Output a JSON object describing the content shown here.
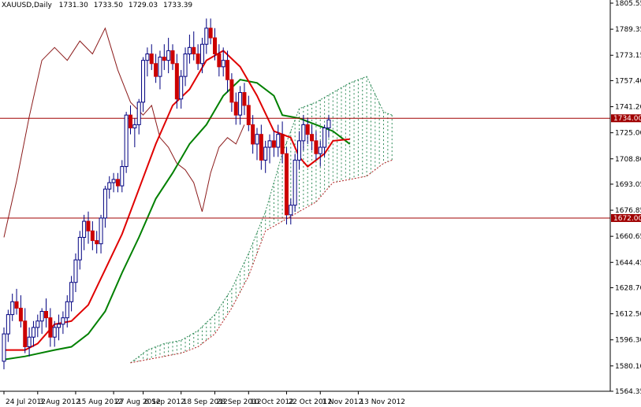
{
  "header": {
    "symbol": "XAUUSD,Daily",
    "open": "1731.30",
    "high": "1733.50",
    "low": "1729.03",
    "close": "1733.39"
  },
  "colors": {
    "background": "#ffffff",
    "bull_candle": "#ffffff",
    "bear_candle": "#cc0000",
    "candle_outline": "#000080",
    "tenkan": "#e00000",
    "kijun": "#008000",
    "chikou": "#8b1a1a",
    "cloud_bull": "#2e8b57",
    "cloud_bear": "#b22222",
    "level_line": "#a00000",
    "axis": "#000000"
  },
  "chart_data": {
    "type": "candlestick-ichimoku",
    "y_axis": {
      "min": 1564.35,
      "max": 1805.55,
      "ticks": [
        "1805.55",
        "1789.35",
        "1773.15",
        "1757.40",
        "1741.20",
        "1725.00",
        "1708.80",
        "1693.05",
        "1676.85",
        "1660.65",
        "1644.45",
        "1628.70",
        "1612.50",
        "1596.30",
        "1580.10",
        "1564.35"
      ]
    },
    "x_axis": {
      "labels": [
        "24 Jul 2012",
        "3 Aug 2012",
        "15 Aug 2012",
        "27 Aug 2012",
        "6 Sep 2012",
        "18 Sep 2012",
        "28 Sep 2012",
        "10 Oct 2012",
        "22 Oct 2012",
        "1 Nov 2012",
        "13 Nov 2012"
      ],
      "label_bar_index": [
        0,
        8,
        17,
        26,
        33,
        42,
        50,
        58,
        67,
        75,
        84
      ]
    },
    "levels": [
      {
        "value": 1734.0,
        "label": "1734.00"
      },
      {
        "value": 1672.0,
        "label": "1672.00"
      }
    ],
    "candles": [
      [
        1583,
        1604,
        1578,
        1600
      ],
      [
        1600,
        1615,
        1595,
        1612
      ],
      [
        1612,
        1625,
        1608,
        1620
      ],
      [
        1620,
        1628,
        1612,
        1616
      ],
      [
        1616,
        1624,
        1604,
        1608
      ],
      [
        1608,
        1616,
        1588,
        1592
      ],
      [
        1592,
        1604,
        1586,
        1598
      ],
      [
        1598,
        1608,
        1592,
        1604
      ],
      [
        1604,
        1612,
        1598,
        1608
      ],
      [
        1608,
        1616,
        1600,
        1614
      ],
      [
        1614,
        1622,
        1604,
        1610
      ],
      [
        1610,
        1616,
        1592,
        1598
      ],
      [
        1598,
        1608,
        1592,
        1604
      ],
      [
        1604,
        1612,
        1596,
        1606
      ],
      [
        1606,
        1614,
        1600,
        1610
      ],
      [
        1610,
        1624,
        1604,
        1620
      ],
      [
        1620,
        1636,
        1614,
        1632
      ],
      [
        1632,
        1650,
        1626,
        1646
      ],
      [
        1646,
        1664,
        1640,
        1660
      ],
      [
        1660,
        1674,
        1652,
        1670
      ],
      [
        1670,
        1676,
        1656,
        1664
      ],
      [
        1664,
        1670,
        1652,
        1658
      ],
      [
        1658,
        1664,
        1650,
        1656
      ],
      [
        1656,
        1674,
        1650,
        1672
      ],
      [
        1672,
        1692,
        1666,
        1690
      ],
      [
        1690,
        1698,
        1684,
        1694
      ],
      [
        1694,
        1700,
        1688,
        1696
      ],
      [
        1696,
        1700,
        1688,
        1692
      ],
      [
        1692,
        1708,
        1688,
        1704
      ],
      [
        1704,
        1738,
        1700,
        1736
      ],
      [
        1736,
        1742,
        1724,
        1728
      ],
      [
        1728,
        1734,
        1716,
        1730
      ],
      [
        1730,
        1746,
        1724,
        1744
      ],
      [
        1744,
        1772,
        1738,
        1770
      ],
      [
        1770,
        1778,
        1760,
        1774
      ],
      [
        1774,
        1780,
        1764,
        1768
      ],
      [
        1768,
        1774,
        1756,
        1760
      ],
      [
        1760,
        1776,
        1752,
        1772
      ],
      [
        1772,
        1780,
        1764,
        1770
      ],
      [
        1770,
        1784,
        1762,
        1776
      ],
      [
        1776,
        1780,
        1764,
        1768
      ],
      [
        1768,
        1774,
        1740,
        1746
      ],
      [
        1746,
        1764,
        1740,
        1760
      ],
      [
        1760,
        1778,
        1754,
        1774
      ],
      [
        1774,
        1786,
        1768,
        1778
      ],
      [
        1778,
        1788,
        1770,
        1774
      ],
      [
        1774,
        1780,
        1764,
        1768
      ],
      [
        1768,
        1784,
        1762,
        1780
      ],
      [
        1780,
        1796,
        1774,
        1790
      ],
      [
        1790,
        1796,
        1780,
        1784
      ],
      [
        1784,
        1790,
        1770,
        1774
      ],
      [
        1774,
        1780,
        1760,
        1766
      ],
      [
        1766,
        1778,
        1760,
        1770
      ],
      [
        1770,
        1776,
        1750,
        1758
      ],
      [
        1758,
        1762,
        1738,
        1744
      ],
      [
        1744,
        1750,
        1730,
        1736
      ],
      [
        1736,
        1754,
        1730,
        1750
      ],
      [
        1750,
        1756,
        1736,
        1742
      ],
      [
        1742,
        1748,
        1726,
        1730
      ],
      [
        1730,
        1736,
        1712,
        1718
      ],
      [
        1718,
        1728,
        1708,
        1724
      ],
      [
        1724,
        1730,
        1702,
        1708
      ],
      [
        1708,
        1720,
        1700,
        1716
      ],
      [
        1716,
        1724,
        1706,
        1720
      ],
      [
        1720,
        1726,
        1710,
        1716
      ],
      [
        1716,
        1730,
        1710,
        1724
      ],
      [
        1724,
        1732,
        1706,
        1712
      ],
      [
        1712,
        1716,
        1668,
        1674
      ],
      [
        1674,
        1684,
        1668,
        1680
      ],
      [
        1680,
        1712,
        1676,
        1708
      ],
      [
        1708,
        1726,
        1702,
        1720
      ],
      [
        1720,
        1736,
        1714,
        1730
      ],
      [
        1730,
        1734,
        1718,
        1724
      ],
      [
        1724,
        1730,
        1714,
        1720
      ],
      [
        1720,
        1726,
        1708,
        1712
      ],
      [
        1712,
        1720,
        1704,
        1716
      ],
      [
        1716,
        1730,
        1710,
        1728
      ],
      [
        1728,
        1736,
        1722,
        1733
      ]
    ],
    "bar_positions": [
      5,
      10,
      16,
      21,
      26,
      31,
      36,
      41,
      46,
      51,
      57,
      62,
      67,
      72,
      77,
      82,
      88,
      93,
      98,
      103,
      108,
      114,
      119,
      124,
      130,
      135,
      140,
      145,
      150,
      156,
      161,
      166,
      172,
      177,
      182,
      187,
      193,
      198,
      203,
      208,
      214,
      219,
      224,
      229,
      234,
      240,
      245,
      250,
      255,
      261,
      266,
      271,
      276,
      282,
      287,
      292,
      297,
      302,
      308,
      313,
      318,
      323,
      328,
      334,
      339,
      344,
      349,
      354,
      360,
      365,
      370,
      375,
      380,
      386,
      391,
      396,
      401,
      406
    ],
    "tenkan": [
      [
        0,
        1590
      ],
      [
        5,
        1590
      ],
      [
        8,
        1594
      ],
      [
        12,
        1606
      ],
      [
        16,
        1608
      ],
      [
        20,
        1618
      ],
      [
        24,
        1640
      ],
      [
        28,
        1662
      ],
      [
        32,
        1690
      ],
      [
        36,
        1718
      ],
      [
        40,
        1742
      ],
      [
        44,
        1752
      ],
      [
        48,
        1770
      ],
      [
        52,
        1776
      ],
      [
        56,
        1766
      ],
      [
        60,
        1748
      ],
      [
        64,
        1726
      ],
      [
        68,
        1722
      ],
      [
        70,
        1710
      ],
      [
        72,
        1704
      ],
      [
        76,
        1712
      ],
      [
        78,
        1720
      ],
      [
        82,
        1721
      ]
    ],
    "kijun": [
      [
        0,
        1584
      ],
      [
        5,
        1586
      ],
      [
        12,
        1590
      ],
      [
        16,
        1592
      ],
      [
        20,
        1600
      ],
      [
        24,
        1614
      ],
      [
        28,
        1638
      ],
      [
        32,
        1660
      ],
      [
        36,
        1684
      ],
      [
        40,
        1700
      ],
      [
        44,
        1718
      ],
      [
        48,
        1730
      ],
      [
        52,
        1748
      ],
      [
        56,
        1758
      ],
      [
        60,
        1756
      ],
      [
        64,
        1748
      ],
      [
        66,
        1736
      ],
      [
        70,
        1734
      ],
      [
        74,
        1730
      ],
      [
        78,
        1726
      ],
      [
        82,
        1718
      ]
    ],
    "chikou": [
      [
        0,
        1660
      ],
      [
        3,
        1695
      ],
      [
        6,
        1735
      ],
      [
        9,
        1770
      ],
      [
        12,
        1778
      ],
      [
        15,
        1770
      ],
      [
        18,
        1782
      ],
      [
        21,
        1774
      ],
      [
        24,
        1790
      ],
      [
        27,
        1764
      ],
      [
        30,
        1744
      ],
      [
        33,
        1736
      ],
      [
        35,
        1742
      ],
      [
        37,
        1722
      ],
      [
        39,
        1716
      ],
      [
        41,
        1706
      ],
      [
        43,
        1702
      ],
      [
        45,
        1694
      ],
      [
        47,
        1676
      ],
      [
        49,
        1700
      ],
      [
        51,
        1716
      ],
      [
        53,
        1722
      ],
      [
        55,
        1718
      ],
      [
        57,
        1730
      ]
    ],
    "cloud_span_a": [
      [
        30,
        1582
      ],
      [
        34,
        1590
      ],
      [
        38,
        1594
      ],
      [
        42,
        1596
      ],
      [
        46,
        1602
      ],
      [
        50,
        1612
      ],
      [
        54,
        1628
      ],
      [
        58,
        1650
      ],
      [
        62,
        1676
      ],
      [
        66,
        1712
      ],
      [
        70,
        1740
      ],
      [
        74,
        1744
      ],
      [
        78,
        1750
      ],
      [
        82,
        1756
      ],
      [
        86,
        1760
      ],
      [
        90,
        1738
      ],
      [
        92,
        1736
      ]
    ],
    "cloud_span_b": [
      [
        30,
        1582
      ],
      [
        34,
        1584
      ],
      [
        38,
        1586
      ],
      [
        42,
        1588
      ],
      [
        46,
        1592
      ],
      [
        50,
        1600
      ],
      [
        54,
        1616
      ],
      [
        58,
        1636
      ],
      [
        62,
        1664
      ],
      [
        66,
        1670
      ],
      [
        70,
        1676
      ],
      [
        74,
        1682
      ],
      [
        78,
        1694
      ],
      [
        82,
        1696
      ],
      [
        86,
        1698
      ],
      [
        90,
        1706
      ],
      [
        92,
        1708
      ]
    ]
  }
}
